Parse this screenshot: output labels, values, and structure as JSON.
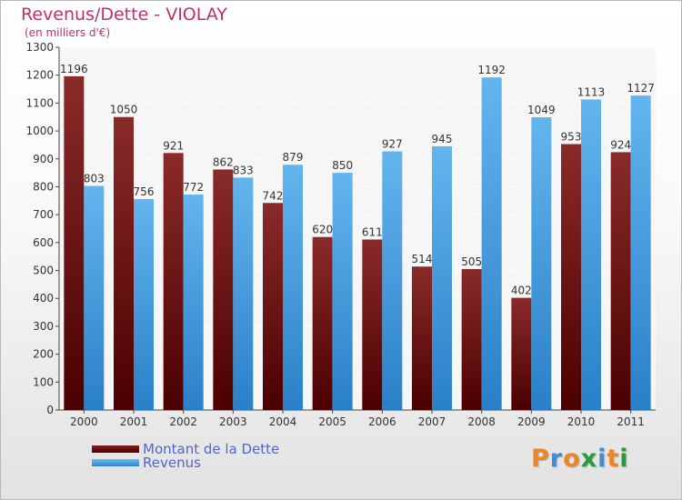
{
  "header": {
    "title": "Revenus/Dette - VIOLAY",
    "subtitle": "(en milliers d'€)"
  },
  "colors": {
    "dette": "#6b0b0b",
    "revenus": "#3d9be0",
    "title": "#c0306a",
    "legend_text": "#5064d2"
  },
  "chart_data": {
    "type": "bar",
    "categories": [
      "2000",
      "2001",
      "2002",
      "2003",
      "2004",
      "2005",
      "2006",
      "2007",
      "2008",
      "2009",
      "2010",
      "2011"
    ],
    "series": [
      {
        "name": "Montant de la Dette",
        "values": [
          1196,
          1050,
          921,
          862,
          742,
          620,
          611,
          514,
          505,
          402,
          953,
          924
        ]
      },
      {
        "name": "Revenus",
        "values": [
          803,
          756,
          772,
          833,
          879,
          850,
          927,
          945,
          1192,
          1049,
          1113,
          1127
        ]
      }
    ],
    "ylim": [
      0,
      1300
    ],
    "yticks": [
      0,
      100,
      200,
      300,
      400,
      500,
      600,
      700,
      800,
      900,
      1000,
      1100,
      1200,
      1300
    ],
    "grid": true,
    "legend_position": "bottom-left"
  },
  "legend": {
    "items": [
      "Montant de la Dette",
      "Revenus"
    ]
  },
  "logo": {
    "letters": [
      "P",
      "r",
      "o",
      "x",
      "i",
      "t",
      "i"
    ],
    "colors": [
      "#e8862a",
      "#3b8fd4",
      "#e8862a",
      "#2a9a3a",
      "#3b8fd4",
      "#e8862a",
      "#2a9a3a"
    ]
  }
}
